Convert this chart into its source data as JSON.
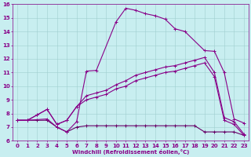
{
  "xlabel": "Windchill (Refroidissement éolien,°C)",
  "xlim": [
    -0.5,
    23.5
  ],
  "ylim": [
    6,
    16
  ],
  "xticks": [
    0,
    1,
    2,
    3,
    4,
    5,
    6,
    7,
    8,
    9,
    10,
    11,
    12,
    13,
    14,
    15,
    16,
    17,
    18,
    19,
    20,
    21,
    22,
    23
  ],
  "yticks": [
    6,
    7,
    8,
    9,
    10,
    11,
    12,
    13,
    14,
    15,
    16
  ],
  "background_color": "#c8eef0",
  "grid_color": "#9fcfcf",
  "line_color": "#880088",
  "line_color2": "#660066",
  "line1_x": [
    0,
    1,
    2,
    3,
    4,
    5,
    6,
    7,
    8,
    9,
    10,
    11,
    12,
    13,
    14,
    15,
    16,
    17,
    18,
    19,
    20,
    21,
    22,
    23
  ],
  "line1_y": [
    7.5,
    7.5,
    7.5,
    7.5,
    7.0,
    6.65,
    7.0,
    7.1,
    7.1,
    7.1,
    7.1,
    7.1,
    7.1,
    7.1,
    7.1,
    7.1,
    7.1,
    7.1,
    7.1,
    6.65,
    6.65,
    6.65,
    6.65,
    6.4
  ],
  "line2_x": [
    0,
    1,
    2,
    3,
    4,
    5,
    6,
    7,
    8,
    9,
    10,
    11,
    12,
    13,
    14,
    15,
    16,
    17,
    18,
    19,
    20,
    21,
    22,
    23
  ],
  "line2_y": [
    7.5,
    7.5,
    7.9,
    8.3,
    7.2,
    7.5,
    8.5,
    9.3,
    9.5,
    9.7,
    10.1,
    10.4,
    10.8,
    11.0,
    11.2,
    11.4,
    11.5,
    11.7,
    11.9,
    12.1,
    11.0,
    7.7,
    7.4,
    6.5
  ],
  "line3_x": [
    0,
    1,
    2,
    3,
    4,
    5,
    6,
    7,
    8,
    9,
    10,
    11,
    12,
    13,
    14,
    15,
    16,
    17,
    18,
    19,
    20,
    21,
    22,
    23
  ],
  "line3_y": [
    7.5,
    7.5,
    7.9,
    8.3,
    7.2,
    7.5,
    8.5,
    9.0,
    9.2,
    9.4,
    9.8,
    10.0,
    10.4,
    10.6,
    10.8,
    11.0,
    11.1,
    11.3,
    11.5,
    11.7,
    10.7,
    7.5,
    7.2,
    6.4
  ],
  "line4_x": [
    0,
    1,
    3,
    4,
    5,
    6,
    7,
    8,
    10,
    11,
    12,
    13,
    14,
    15,
    16,
    17,
    19,
    20,
    21,
    22,
    23
  ],
  "line4_y": [
    7.5,
    7.5,
    7.6,
    7.0,
    6.65,
    7.4,
    11.1,
    11.15,
    14.7,
    15.7,
    15.55,
    15.3,
    15.15,
    14.9,
    14.2,
    14.0,
    12.6,
    12.55,
    11.0,
    7.6,
    7.3
  ]
}
